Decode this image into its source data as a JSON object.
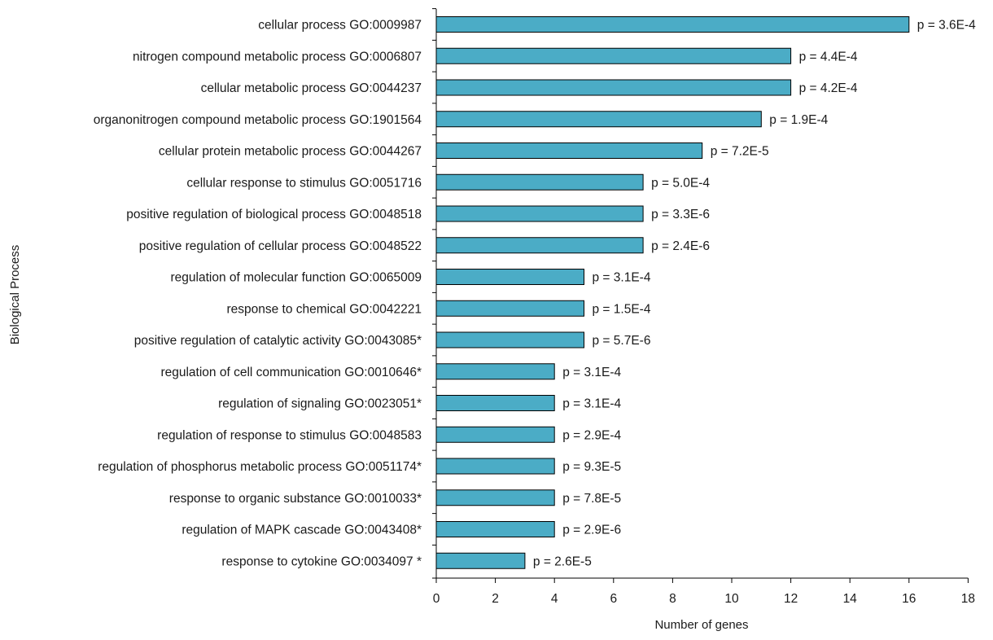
{
  "chart_data": {
    "type": "bar",
    "orientation": "horizontal",
    "xlabel": "Number of genes",
    "ylabel": "Biological Process",
    "xlim": [
      0,
      18
    ],
    "xticks": [
      0,
      2,
      4,
      6,
      8,
      10,
      12,
      14,
      16,
      18
    ],
    "grid": false,
    "legend": "none",
    "bar_color": "#4BACC6",
    "bar_edge_color": "#000000",
    "categories": [
      "cellular process GO:0009987",
      "nitrogen compound metabolic process GO:0006807",
      "cellular metabolic process GO:0044237",
      "organonitrogen compound metabolic process GO:1901564",
      "cellular protein metabolic process GO:0044267",
      "cellular response to stimulus GO:0051716",
      "positive regulation of biological process GO:0048518",
      "positive regulation of cellular process GO:0048522",
      "regulation of molecular function GO:0065009",
      "response to chemical GO:0042221",
      "positive regulation of catalytic activity GO:0043085*",
      "regulation of cell communication GO:0010646*",
      "regulation of signaling GO:0023051*",
      "regulation of response to stimulus GO:0048583",
      "regulation of phosphorus metabolic process GO:0051174*",
      "response to organic substance GO:0010033*",
      "regulation of MAPK cascade GO:0043408*",
      "response to cytokine GO:0034097 *"
    ],
    "values": [
      16,
      12,
      12,
      11,
      9,
      7,
      7,
      7,
      5,
      5,
      5,
      4,
      4,
      4,
      4,
      4,
      4,
      3
    ],
    "data_labels": [
      "p = 3.6E-4",
      "p = 4.4E-4",
      "p = 4.2E-4",
      "p = 1.9E-4",
      "p = 7.2E-5",
      "p = 5.0E-4",
      "p = 3.3E-6",
      "p = 2.4E-6",
      "p = 3.1E-4",
      "p = 1.5E-4",
      "p = 5.7E-6",
      "p = 3.1E-4",
      "p = 3.1E-4",
      "p = 2.9E-4",
      "p = 9.3E-5",
      "p = 7.8E-5",
      "p = 2.9E-6",
      "p = 2.6E-5"
    ]
  }
}
